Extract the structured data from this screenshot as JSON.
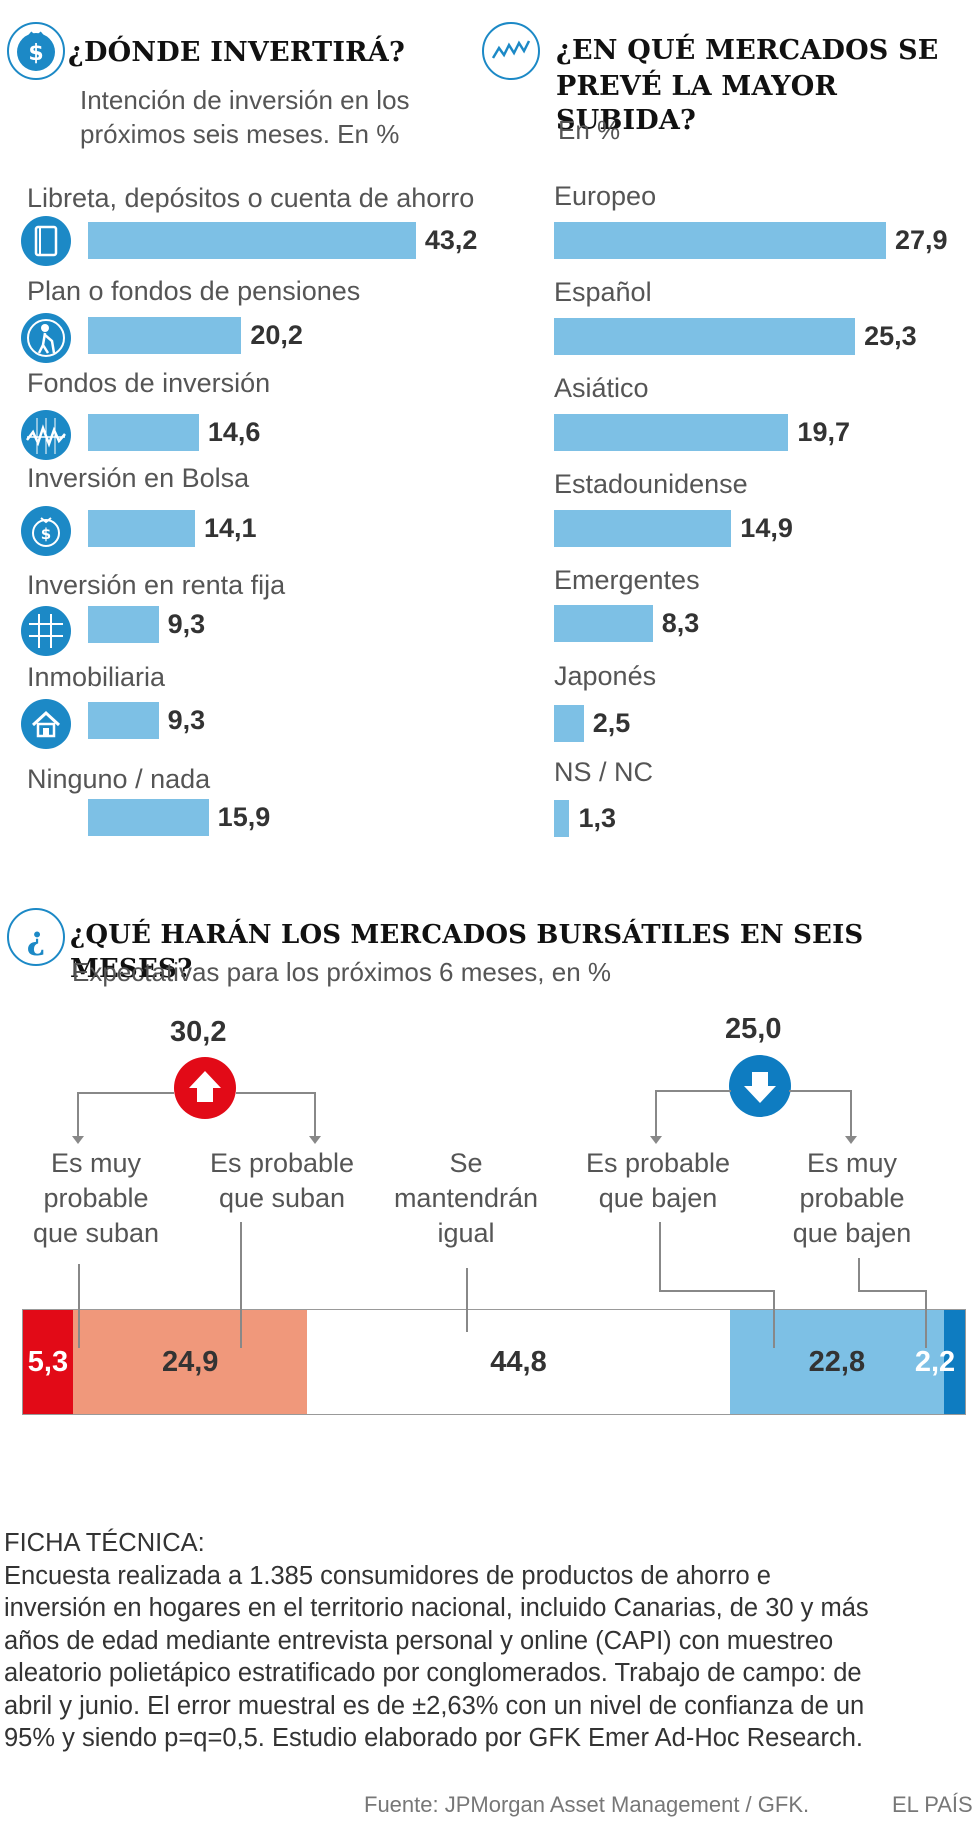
{
  "colors": {
    "bar": "#7dc0e5",
    "icon": "#1c89c6",
    "red": "#e20a17",
    "salmon": "#f0987b",
    "lightblue": "#7dc0e5",
    "darkblue": "#0e7cc1"
  },
  "section1": {
    "icon": "dollar-bag-icon",
    "title": "¿DÓNDE INVERTIRÁ?",
    "subtitle_line1": "Intención de inversión en los",
    "subtitle_line2": "próximos seis meses. En %"
  },
  "section2": {
    "icon": "line-chart-icon",
    "title_line1": "¿EN QUÉ MERCADOS SE",
    "title_line2": "PREVÉ LA MAYOR SUBIDA?",
    "subtitle": "En %"
  },
  "section3": {
    "icon": "question-mark-icon",
    "title": "¿QUÉ HARÁN LOS MERCADOS BURSÁTILES EN SEIS MESES?",
    "subtitle": "Expectativas para los próximos 6 meses, en %",
    "up_total": "30,2",
    "down_total": "25,0",
    "choices": {
      "c1": [
        "Es muy",
        "probable",
        "que suban"
      ],
      "c2": [
        "Es probable",
        "que suban"
      ],
      "c3": [
        "Se",
        "mantendrán",
        "igual"
      ],
      "c4": [
        "Es probable",
        "que bajen"
      ],
      "c5": [
        "Es muy",
        "probable",
        "que bajen"
      ]
    },
    "value_labels": [
      "5,3",
      "24,9",
      "44,8",
      "22,8",
      "2,2"
    ]
  },
  "chart_data": [
    {
      "type": "bar",
      "orientation": "horizontal",
      "title": "¿DÓNDE INVERTIRÁ?",
      "subtitle": "Intención de inversión en los próximos seis meses. En %",
      "categories": [
        "Libreta, depósitos o cuenta de ahorro",
        "Plan o fondos de pensiones",
        "Fondos de inversión",
        "Inversión en Bolsa",
        "Inversión en renta fija",
        "Inmobiliaria",
        "Ninguno / nada"
      ],
      "values": [
        43.2,
        20.2,
        14.6,
        14.1,
        9.3,
        9.3,
        15.9
      ],
      "value_labels": [
        "43,2",
        "20,2",
        "14,6",
        "14,1",
        "9,3",
        "9,3",
        "15,9"
      ],
      "icons": [
        "savings-book-icon",
        "elderly-person-icon",
        "fund-chart-icon",
        "dollar-bag-icon",
        "grid-icon",
        "house-icon",
        ""
      ]
    },
    {
      "type": "bar",
      "orientation": "horizontal",
      "title": "¿EN QUÉ MERCADOS SE PREVÉ LA MAYOR SUBIDA?",
      "subtitle": "En %",
      "categories": [
        "Europeo",
        "Español",
        "Asiático",
        "Estadounidense",
        "Emergentes",
        "Japonés",
        "NS / NC"
      ],
      "values": [
        27.9,
        25.3,
        19.7,
        14.9,
        8.3,
        2.5,
        1.3
      ],
      "value_labels": [
        "27,9",
        "25,3",
        "19,7",
        "14,9",
        "8,3",
        "2,5",
        "1,3"
      ]
    },
    {
      "type": "bar",
      "orientation": "stacked-horizontal",
      "title": "¿QUÉ HARÁN LOS MERCADOS BURSÁTILES EN SEIS MESES?",
      "subtitle": "Expectativas para los próximos 6 meses, en %",
      "categories": [
        "Es muy probable que suban",
        "Es probable que suban",
        "Se mantendrán igual",
        "Es probable que bajen",
        "Es muy probable que bajen"
      ],
      "values": [
        5.3,
        24.9,
        44.8,
        22.8,
        2.2
      ],
      "groups": [
        {
          "name": "Suben",
          "total": 30.2
        },
        {
          "name": "Bajan",
          "total": 25.0
        }
      ]
    }
  ],
  "ficha": {
    "heading": "FICHA TÉCNICA:",
    "lines": [
      "Encuesta realizada a 1.385 consumidores de productos de ahorro e",
      "inversión en hogares en el territorio nacional, incluido Canarias, de 30 y más",
      "años de edad mediante entrevista personal y online (CAPI) con muestreo",
      "aleatorio polietápico estratificado por conglomerados. Trabajo de campo: de",
      "abril y junio. El error muestral es de ±2,63% con un nivel de confianza de un",
      "95% y siendo p=q=0,5.  Estudio elaborado por GFK Emer Ad-Hoc Research."
    ]
  },
  "footer": {
    "source": "Fuente: JPMorgan Asset Management / GFK.",
    "brand": "EL PAÍS"
  }
}
